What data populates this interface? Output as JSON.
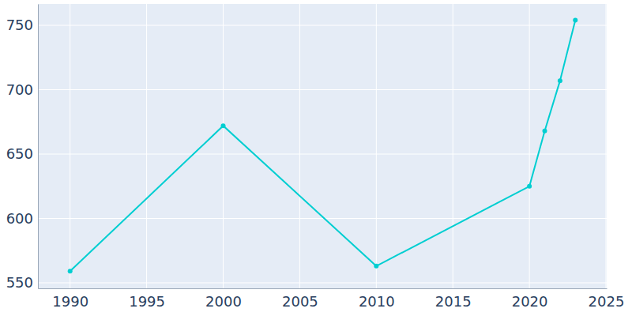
{
  "chart_data": {
    "type": "line",
    "x": [
      1990,
      2000,
      2010,
      2020,
      2021,
      2022,
      2023
    ],
    "values": [
      559,
      672,
      563,
      625,
      668,
      707,
      754
    ],
    "color": "#00ced1",
    "marker": "circle",
    "xlim": [
      1987.9,
      2025.05
    ],
    "xticks": [
      1990,
      1995,
      2000,
      2005,
      2010,
      2015,
      2020,
      2025
    ],
    "ylim": [
      545.7,
      766.6
    ],
    "yticks": [
      550,
      600,
      650,
      700,
      750
    ],
    "grid": true
  }
}
